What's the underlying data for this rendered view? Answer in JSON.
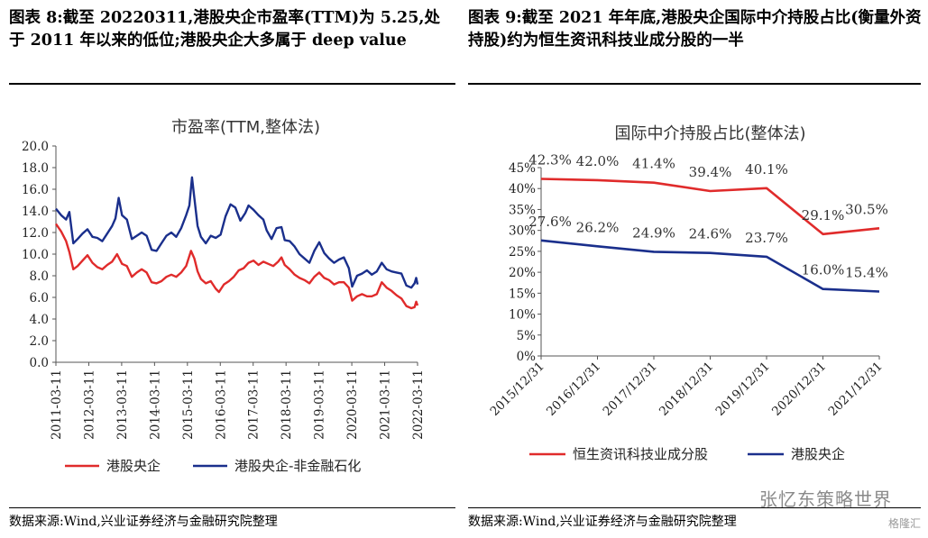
{
  "left_panel": {
    "figure_title": "图表 8:截至 20220311,港股央企市盈率(TTM)为 5.25,处于 2011 年以来的低位;港股央企大多属于 deep value",
    "source": "数据来源:Wind,兴业证券经济与金融研究院整理"
  },
  "right_panel": {
    "figure_title": "图表 9:截至 2021 年年底,港股央企国际中介持股占比(衡量外资持股)约为恒生资讯科技业成分股的一半",
    "source": "数据来源:Wind,兴业证券经济与金融研究院整理"
  },
  "watermark": "张忆东策略世界",
  "watermark_badge": "格隆汇",
  "colors": {
    "red": "#e02b2b",
    "blue": "#1a2f8c"
  },
  "chart_data": [
    {
      "type": "line",
      "title": "市盈率(TTM,整体法)",
      "xlabel": "",
      "ylabel": "",
      "x_ticks": [
        "2011-03-11",
        "2012-03-11",
        "2013-03-11",
        "2014-03-11",
        "2015-03-11",
        "2016-03-11",
        "2017-03-11",
        "2018-03-11",
        "2019-03-11",
        "2020-03-11",
        "2021-03-11",
        "2022-03-11"
      ],
      "y_ticks": [
        "0.0",
        "2.0",
        "4.0",
        "6.0",
        "8.0",
        "10.0",
        "12.0",
        "14.0",
        "16.0",
        "18.0",
        "20.0"
      ],
      "ylim": [
        0,
        20
      ],
      "legend": "bottom",
      "grid": false,
      "series": [
        {
          "name": "港股央企",
          "color": "#e02b2b",
          "points": [
            [
              2011.19,
              12.8
            ],
            [
              2011.35,
              12.1
            ],
            [
              2011.5,
              11.2
            ],
            [
              2011.6,
              10.2
            ],
            [
              2011.72,
              8.6
            ],
            [
              2011.85,
              8.9
            ],
            [
              2012.0,
              9.4
            ],
            [
              2012.15,
              9.9
            ],
            [
              2012.3,
              9.2
            ],
            [
              2012.45,
              8.8
            ],
            [
              2012.6,
              8.6
            ],
            [
              2012.75,
              9.0
            ],
            [
              2012.9,
              9.3
            ],
            [
              2013.05,
              10.0
            ],
            [
              2013.2,
              9.1
            ],
            [
              2013.35,
              8.9
            ],
            [
              2013.5,
              7.9
            ],
            [
              2013.65,
              8.3
            ],
            [
              2013.8,
              8.6
            ],
            [
              2013.95,
              8.3
            ],
            [
              2014.1,
              7.4
            ],
            [
              2014.25,
              7.3
            ],
            [
              2014.4,
              7.5
            ],
            [
              2014.55,
              7.9
            ],
            [
              2014.7,
              8.1
            ],
            [
              2014.85,
              7.9
            ],
            [
              2015.0,
              8.3
            ],
            [
              2015.15,
              8.9
            ],
            [
              2015.3,
              10.3
            ],
            [
              2015.4,
              9.6
            ],
            [
              2015.5,
              8.4
            ],
            [
              2015.6,
              7.7
            ],
            [
              2015.75,
              7.3
            ],
            [
              2015.9,
              7.5
            ],
            [
              2016.05,
              6.8
            ],
            [
              2016.15,
              6.5
            ],
            [
              2016.3,
              7.2
            ],
            [
              2016.45,
              7.5
            ],
            [
              2016.6,
              7.9
            ],
            [
              2016.75,
              8.5
            ],
            [
              2016.9,
              8.7
            ],
            [
              2017.05,
              9.2
            ],
            [
              2017.2,
              9.4
            ],
            [
              2017.35,
              9.0
            ],
            [
              2017.5,
              9.3
            ],
            [
              2017.65,
              9.1
            ],
            [
              2017.8,
              8.9
            ],
            [
              2017.95,
              9.3
            ],
            [
              2018.05,
              9.7
            ],
            [
              2018.15,
              9.0
            ],
            [
              2018.3,
              8.6
            ],
            [
              2018.45,
              8.1
            ],
            [
              2018.6,
              7.8
            ],
            [
              2018.75,
              7.6
            ],
            [
              2018.9,
              7.3
            ],
            [
              2019.05,
              7.9
            ],
            [
              2019.2,
              8.3
            ],
            [
              2019.35,
              7.8
            ],
            [
              2019.5,
              7.6
            ],
            [
              2019.65,
              7.2
            ],
            [
              2019.8,
              7.4
            ],
            [
              2019.95,
              7.4
            ],
            [
              2020.1,
              6.9
            ],
            [
              2020.2,
              5.7
            ],
            [
              2020.35,
              6.1
            ],
            [
              2020.5,
              6.3
            ],
            [
              2020.65,
              6.1
            ],
            [
              2020.8,
              6.1
            ],
            [
              2020.95,
              6.3
            ],
            [
              2021.1,
              7.4
            ],
            [
              2021.25,
              6.9
            ],
            [
              2021.4,
              6.6
            ],
            [
              2021.55,
              6.2
            ],
            [
              2021.7,
              5.9
            ],
            [
              2021.85,
              5.2
            ],
            [
              2022.0,
              5.0
            ],
            [
              2022.1,
              5.1
            ],
            [
              2022.15,
              5.6
            ],
            [
              2022.19,
              5.25
            ]
          ]
        },
        {
          "name": "港股央企-非金融石化",
          "color": "#1a2f8c",
          "points": [
            [
              2011.19,
              14.2
            ],
            [
              2011.35,
              13.6
            ],
            [
              2011.5,
              13.2
            ],
            [
              2011.6,
              13.9
            ],
            [
              2011.72,
              11.0
            ],
            [
              2011.85,
              11.4
            ],
            [
              2012.0,
              11.9
            ],
            [
              2012.15,
              12.3
            ],
            [
              2012.3,
              11.6
            ],
            [
              2012.45,
              11.5
            ],
            [
              2012.6,
              11.2
            ],
            [
              2012.75,
              11.9
            ],
            [
              2012.9,
              12.6
            ],
            [
              2013.0,
              13.3
            ],
            [
              2013.1,
              15.2
            ],
            [
              2013.2,
              13.6
            ],
            [
              2013.35,
              13.2
            ],
            [
              2013.5,
              11.4
            ],
            [
              2013.65,
              11.7
            ],
            [
              2013.8,
              12.0
            ],
            [
              2013.95,
              11.7
            ],
            [
              2014.1,
              10.4
            ],
            [
              2014.25,
              10.3
            ],
            [
              2014.4,
              11.0
            ],
            [
              2014.55,
              11.7
            ],
            [
              2014.7,
              12.0
            ],
            [
              2014.85,
              11.6
            ],
            [
              2015.0,
              12.4
            ],
            [
              2015.15,
              13.6
            ],
            [
              2015.25,
              14.5
            ],
            [
              2015.33,
              17.1
            ],
            [
              2015.4,
              15.2
            ],
            [
              2015.5,
              12.6
            ],
            [
              2015.6,
              11.6
            ],
            [
              2015.75,
              11.0
            ],
            [
              2015.9,
              11.7
            ],
            [
              2016.05,
              11.5
            ],
            [
              2016.2,
              11.8
            ],
            [
              2016.35,
              13.5
            ],
            [
              2016.5,
              14.6
            ],
            [
              2016.65,
              14.3
            ],
            [
              2016.8,
              13.1
            ],
            [
              2016.95,
              13.8
            ],
            [
              2017.05,
              14.5
            ],
            [
              2017.2,
              14.1
            ],
            [
              2017.35,
              13.6
            ],
            [
              2017.5,
              13.2
            ],
            [
              2017.6,
              12.2
            ],
            [
              2017.75,
              11.4
            ],
            [
              2017.9,
              12.4
            ],
            [
              2018.05,
              12.5
            ],
            [
              2018.15,
              11.3
            ],
            [
              2018.3,
              11.2
            ],
            [
              2018.45,
              10.7
            ],
            [
              2018.6,
              10.0
            ],
            [
              2018.75,
              9.6
            ],
            [
              2018.9,
              9.2
            ],
            [
              2019.05,
              10.3
            ],
            [
              2019.2,
              11.1
            ],
            [
              2019.35,
              10.1
            ],
            [
              2019.5,
              9.6
            ],
            [
              2019.65,
              9.2
            ],
            [
              2019.8,
              9.5
            ],
            [
              2019.95,
              9.7
            ],
            [
              2020.1,
              8.7
            ],
            [
              2020.2,
              7.0
            ],
            [
              2020.35,
              8.0
            ],
            [
              2020.5,
              8.2
            ],
            [
              2020.65,
              8.5
            ],
            [
              2020.8,
              8.1
            ],
            [
              2020.95,
              8.4
            ],
            [
              2021.1,
              9.2
            ],
            [
              2021.25,
              8.6
            ],
            [
              2021.4,
              8.4
            ],
            [
              2021.55,
              8.3
            ],
            [
              2021.7,
              8.2
            ],
            [
              2021.85,
              7.1
            ],
            [
              2022.0,
              6.9
            ],
            [
              2022.1,
              7.3
            ],
            [
              2022.15,
              7.8
            ],
            [
              2022.19,
              7.2
            ]
          ]
        }
      ]
    },
    {
      "type": "line",
      "title": "国际中介持股占比(整体法)",
      "xlabel": "",
      "ylabel": "",
      "categories": [
        "2015/12/31",
        "2016/12/31",
        "2017/12/31",
        "2018/12/31",
        "2019/12/31",
        "2020/12/31",
        "2021/12/31"
      ],
      "y_ticks": [
        "0%",
        "5%",
        "10%",
        "15%",
        "20%",
        "25%",
        "30%",
        "35%",
        "40%",
        "45%"
      ],
      "ylim": [
        0,
        45
      ],
      "legend": "bottom",
      "grid": false,
      "series": [
        {
          "name": "恒生资讯科技业成分股",
          "color": "#e02b2b",
          "values": [
            42.3,
            42.0,
            41.4,
            39.4,
            40.1,
            29.1,
            30.5
          ],
          "labels": [
            "42.3%",
            "42.0%",
            "41.4%",
            "39.4%",
            "40.1%",
            "29.1%",
            "30.5%"
          ]
        },
        {
          "name": "港股央企",
          "color": "#1a2f8c",
          "values": [
            27.6,
            26.2,
            24.9,
            24.6,
            23.7,
            16.0,
            15.4
          ],
          "labels": [
            "27.6%",
            "26.2%",
            "24.9%",
            "24.6%",
            "23.7%",
            "16.0%",
            "15.4%"
          ]
        }
      ]
    }
  ]
}
